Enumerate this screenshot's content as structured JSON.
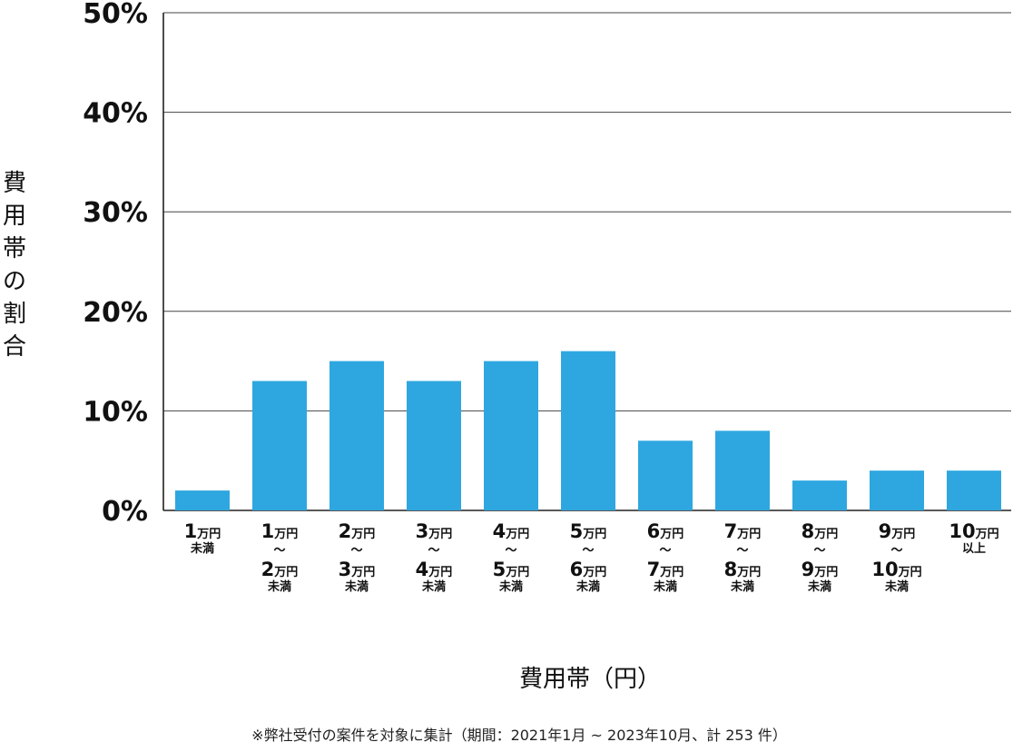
{
  "chart_data": {
    "type": "bar",
    "categories": [
      [
        "1万円",
        "未満"
      ],
      [
        "1万円",
        "〜",
        "2万円",
        "未満"
      ],
      [
        "2万円",
        "〜",
        "3万円",
        "未満"
      ],
      [
        "3万円",
        "〜",
        "4万円",
        "未満"
      ],
      [
        "4万円",
        "〜",
        "5万円",
        "未満"
      ],
      [
        "5万円",
        "〜",
        "6万円",
        "未満"
      ],
      [
        "6万円",
        "〜",
        "7万円",
        "未満"
      ],
      [
        "7万円",
        "〜",
        "8万円",
        "未満"
      ],
      [
        "8万円",
        "〜",
        "9万円",
        "未満"
      ],
      [
        "9万円",
        "〜",
        "10万円",
        "未満"
      ],
      [
        "10万円",
        "以上"
      ]
    ],
    "values": [
      2,
      13,
      15,
      13,
      15,
      16,
      7,
      8,
      3,
      4,
      4
    ],
    "ylim": [
      0,
      50
    ],
    "yticks": [
      0,
      10,
      20,
      30,
      40,
      50
    ],
    "ytick_labels": [
      "0%",
      "10%",
      "20%",
      "30%",
      "40%",
      "50%"
    ],
    "ylabel": "費用帯の割合",
    "xlabel": "費用帯（円）",
    "grid": true,
    "bar_color": "#2ea7e0",
    "note": "※弊社受付の案件を対象に集計（期間：2021年1月 ~ 2023年10月、計 253 件）"
  }
}
